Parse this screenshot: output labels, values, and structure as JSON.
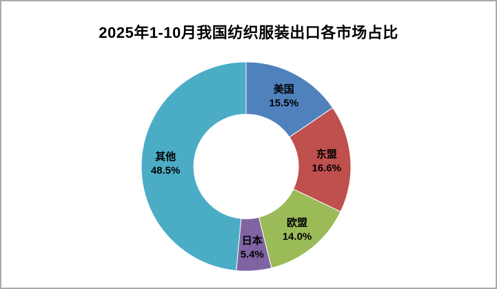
{
  "frame": {
    "border_color": "#A9A9A9",
    "background": "#FFFFFF"
  },
  "chart_data": {
    "type": "pie",
    "subtype": "donut",
    "title": "2025年1-10月我国纺织服装出口各市场占比",
    "categories": [
      "美国",
      "东盟",
      "欧盟",
      "日本",
      "其他"
    ],
    "values": [
      15.5,
      16.6,
      14.0,
      5.4,
      48.5
    ],
    "value_suffix": "%",
    "data_labels": [
      "美国 15.5%",
      "东盟 16.6%",
      "欧盟 14.0%",
      "日本 5.4%",
      "其他 48.5%"
    ],
    "colors": [
      "#4F81BD",
      "#C0504D",
      "#9BBB59",
      "#8064A2",
      "#4BACC6"
    ],
    "start_angle_deg": 0,
    "direction": "clockwise",
    "inner_radius_ratio": 0.5,
    "label_position": "inside",
    "legend": "none"
  }
}
